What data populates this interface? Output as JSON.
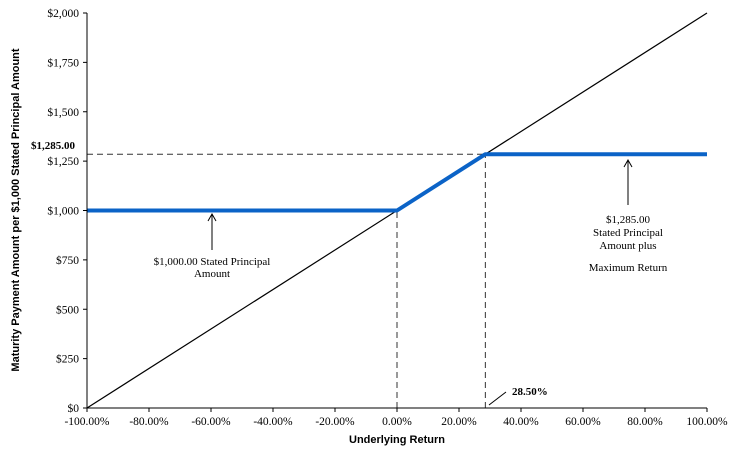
{
  "chart_data": {
    "type": "line",
    "xlabel": "Underlying Return",
    "ylabel": "Maturity Payment Amount per $1,000 Stated Principal Amount",
    "xlim": [
      -100,
      100
    ],
    "ylim": [
      0,
      2000
    ],
    "x_ticks": [
      "-100.00%",
      "-80.00%",
      "-60.00%",
      "-40.00%",
      "-20.00%",
      "0.00%",
      "20.00%",
      "40.00%",
      "60.00%",
      "80.00%",
      "100.00%"
    ],
    "x_tick_values": [
      -100,
      -80,
      -60,
      -40,
      -20,
      0,
      20,
      40,
      60,
      80,
      100
    ],
    "y_ticks": [
      "$0",
      "$250",
      "$500",
      "$750",
      "$1,000",
      "$1,250",
      "$1,500",
      "$1,750",
      "$2,000"
    ],
    "y_tick_values": [
      0,
      250,
      500,
      750,
      1000,
      1250,
      1500,
      1750,
      2000
    ],
    "grid": false,
    "series": [
      {
        "color": "#000000",
        "x": [
          -100,
          100
        ],
        "y": [
          0,
          2000
        ]
      },
      {
        "color": "#0b63c7",
        "x": [
          -100,
          0,
          28.5,
          100
        ],
        "y": [
          1000,
          1000,
          1285,
          1285
        ]
      }
    ],
    "reference_lines": [
      {
        "kind": "horizontal",
        "y": 1285,
        "x_from": -100,
        "x_to": 28.5
      },
      {
        "kind": "vertical",
        "x": 0,
        "y_from": 0,
        "y_to": 1000
      },
      {
        "kind": "vertical",
        "x": 28.5,
        "y_from": 0,
        "y_to": 1285
      }
    ],
    "annotations": {
      "cap_value_label": "$1,285.00",
      "cap_return_label": "28.50%",
      "left_note": [
        "$1,000.00 Stated Principal",
        "Amount"
      ],
      "right_note": [
        "$1,285.00",
        "Stated Principal",
        "Amount plus",
        "Maximum Return"
      ]
    }
  }
}
